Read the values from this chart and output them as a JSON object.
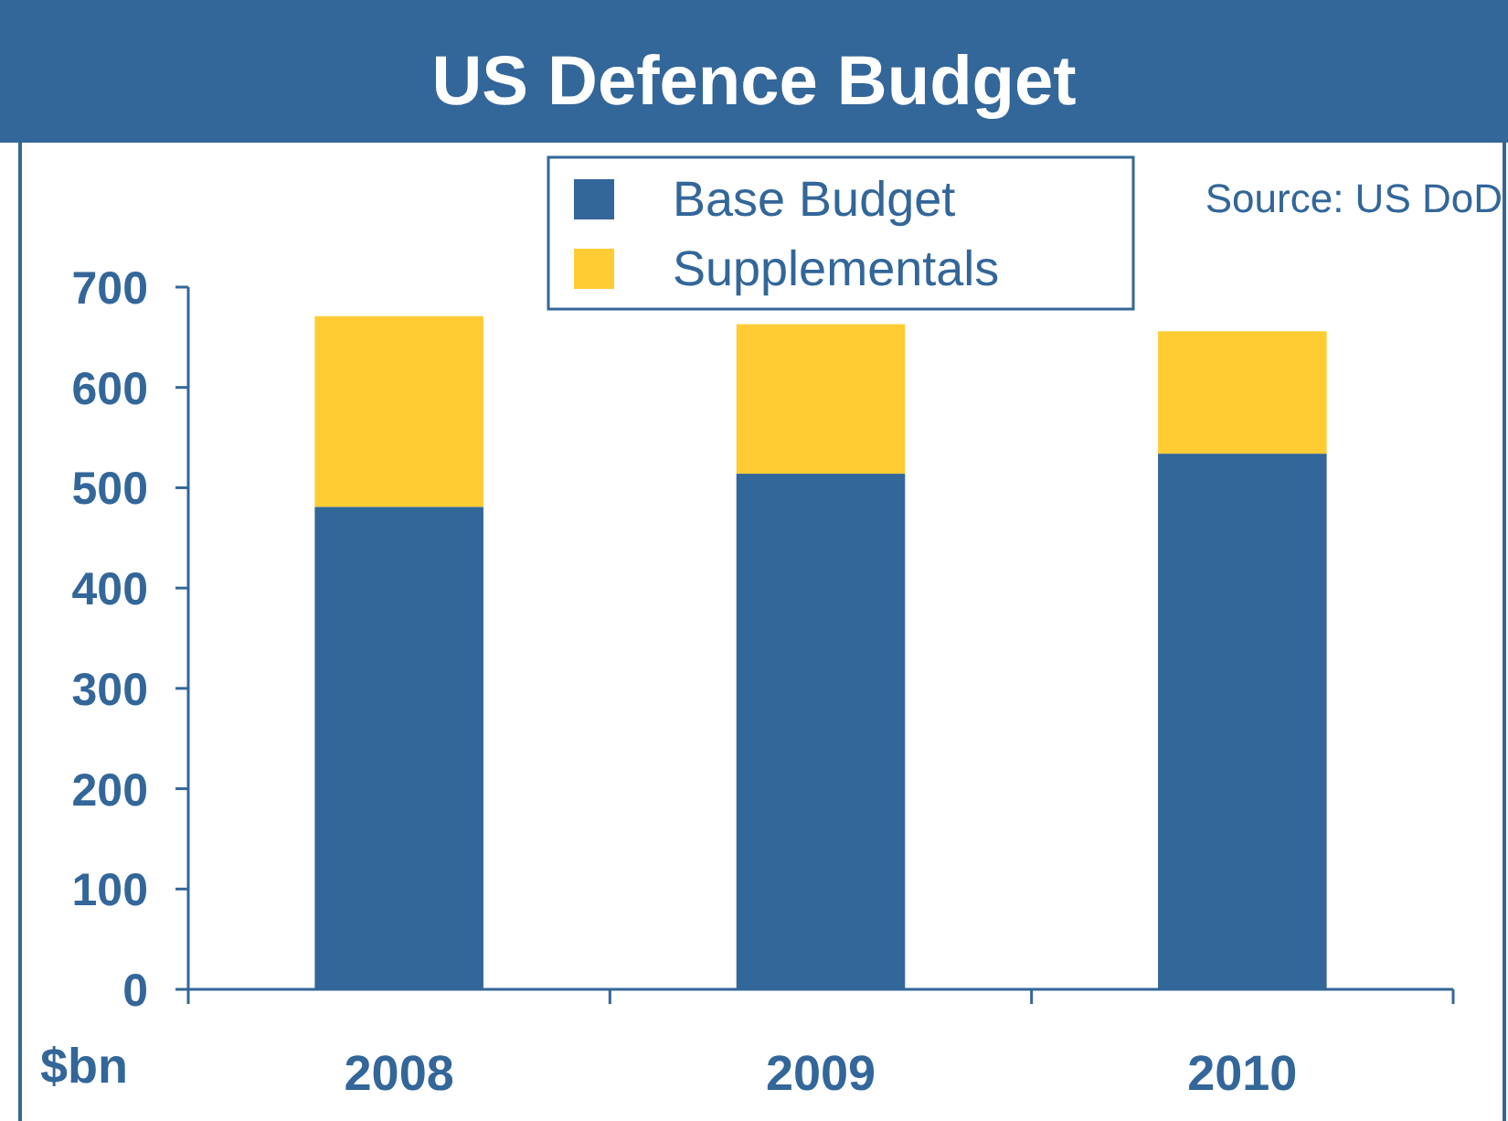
{
  "chart_data": {
    "type": "bar",
    "title": "US Defence Budget",
    "ylabel": "$bn",
    "annotations": [
      "Source: US DoD"
    ],
    "categories": [
      "2008",
      "2009",
      "2010"
    ],
    "series": [
      {
        "name": "Base Budget",
        "color": "#336699",
        "values": [
          481,
          514,
          534
        ]
      },
      {
        "name": "Supplementals",
        "color": "#ffcc33",
        "values": [
          190,
          149,
          122
        ]
      }
    ],
    "stacked": true,
    "ylim": [
      0,
      700
    ],
    "yticks": [
      0,
      100,
      200,
      300,
      400,
      500,
      600,
      700
    ],
    "legend": "top",
    "grid": false
  }
}
